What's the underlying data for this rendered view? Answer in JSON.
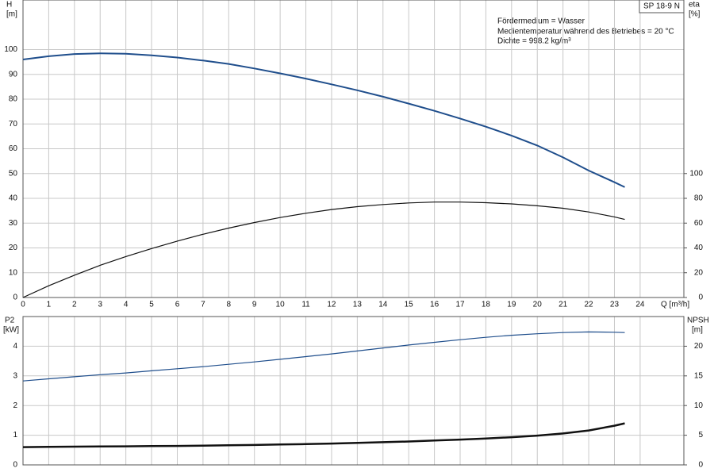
{
  "chart_data": [
    {
      "type": "line",
      "y_label": "H",
      "y_unit": "[m]",
      "y2_label": "eta",
      "y2_unit": "[%]",
      "x_label": "Q [m³/h]",
      "badge": "SP 18-9 N",
      "annotations": [
        "Fördermedium = Wasser",
        "Medientemperatur während des Betriebes = 20 °C",
        "Dichte = 998.2 kg/m³"
      ],
      "x": [
        0,
        1,
        2,
        3,
        4,
        5,
        6,
        7,
        8,
        9,
        10,
        11,
        12,
        13,
        14,
        15,
        16,
        17,
        18,
        19,
        20,
        21,
        22,
        23,
        23.4
      ],
      "xlim": [
        0,
        25.7
      ],
      "xticks": [
        0,
        1,
        2,
        3,
        4,
        5,
        6,
        7,
        8,
        9,
        10,
        11,
        12,
        13,
        14,
        15,
        16,
        17,
        18,
        19,
        20,
        21,
        22,
        23,
        24
      ],
      "ylim": [
        0,
        120
      ],
      "yticks": [
        0,
        10,
        20,
        30,
        40,
        50,
        60,
        70,
        80,
        90,
        100
      ],
      "y2lim": [
        0,
        240
      ],
      "y2ticks": [
        0,
        20,
        40,
        60,
        80,
        100
      ],
      "grid": true,
      "series": [
        {
          "name": "H",
          "color": "#1f4e8c",
          "values": [
            96,
            97.3,
            98.2,
            98.5,
            98.3,
            97.7,
            96.8,
            95.6,
            94.2,
            92.4,
            90.4,
            88.3,
            86,
            83.6,
            81,
            78.2,
            75.3,
            72.2,
            68.9,
            65.3,
            61.3,
            56.5,
            51.2,
            46.5,
            44.5
          ]
        },
        {
          "name": "eta",
          "color": "#111111",
          "axis": "y2",
          "values": [
            0,
            9.5,
            18,
            26,
            33,
            39.5,
            45.5,
            51,
            56,
            60.5,
            64.5,
            68,
            71,
            73.3,
            75,
            76.3,
            77,
            77,
            76.5,
            75.5,
            74,
            72,
            69,
            65,
            63
          ]
        }
      ]
    },
    {
      "type": "line",
      "y_label": "P2",
      "y_unit": "[kW]",
      "y2_label": "NPSH",
      "y2_unit": "[m]",
      "x": [
        0,
        1,
        2,
        3,
        4,
        5,
        6,
        7,
        8,
        9,
        10,
        11,
        12,
        13,
        14,
        15,
        16,
        17,
        18,
        19,
        20,
        21,
        22,
        23,
        23.4
      ],
      "xlim": [
        0,
        25.7
      ],
      "xticks": [
        0,
        1,
        2,
        3,
        4,
        5,
        6,
        7,
        8,
        9,
        10,
        11,
        12,
        13,
        14,
        15,
        16,
        17,
        18,
        19,
        20,
        21,
        22,
        23,
        24
      ],
      "ylim": [
        0,
        5
      ],
      "yticks": [
        0,
        1,
        2,
        3,
        4
      ],
      "y2lim": [
        0,
        25
      ],
      "y2ticks": [
        0,
        5,
        10,
        15,
        20
      ],
      "grid": true,
      "series": [
        {
          "name": "P2",
          "color": "#1f4e8c",
          "values": [
            2.83,
            2.9,
            2.97,
            3.04,
            3.1,
            3.17,
            3.24,
            3.31,
            3.39,
            3.47,
            3.56,
            3.65,
            3.74,
            3.84,
            3.94,
            4.04,
            4.13,
            4.22,
            4.3,
            4.37,
            4.42,
            4.46,
            4.48,
            4.47,
            4.46
          ]
        },
        {
          "name": "NPSH",
          "color": "#111111",
          "axis": "y2",
          "values": [
            3.0,
            3.03,
            3.07,
            3.1,
            3.13,
            3.17,
            3.2,
            3.25,
            3.3,
            3.36,
            3.43,
            3.5,
            3.6,
            3.7,
            3.82,
            3.95,
            4.1,
            4.27,
            4.45,
            4.67,
            4.93,
            5.3,
            5.8,
            6.6,
            7.0
          ]
        }
      ]
    }
  ]
}
